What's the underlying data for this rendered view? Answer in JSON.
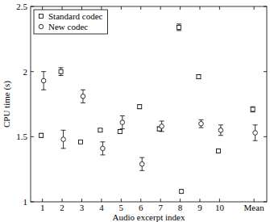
{
  "chart_data": {
    "type": "scatter",
    "x_label": "Audio excerpt index",
    "y_label": "CPU time (s)",
    "x": [
      1,
      2,
      3,
      4,
      5,
      6,
      7,
      8,
      9,
      10,
      11.75
    ],
    "xlim": [
      0.4,
      12.4
    ],
    "xticks": [
      1,
      2,
      3,
      4,
      5,
      6,
      7,
      8,
      9,
      10,
      {
        "value": 11.75,
        "label": "Mean"
      }
    ],
    "ylim": [
      1,
      2.5
    ],
    "yticks": [
      1,
      1.5,
      2,
      2.5
    ],
    "legend": "top-left",
    "series": [
      {
        "name": "Standard codec",
        "color": "#000000",
        "marker": "square",
        "values": [
          1.51,
          2.0,
          1.46,
          1.55,
          1.54,
          1.73,
          1.56,
          2.34,
          1.96,
          1.39,
          1.71
        ],
        "errors": [
          0.015,
          0.03,
          0.01,
          0.01,
          0.015,
          0.015,
          0.015,
          0.025,
          0.015,
          0.015,
          0.02
        ]
      },
      {
        "name": "New codec",
        "color": "#000000",
        "marker": "circle",
        "values": [
          1.93,
          1.48,
          1.81,
          1.41,
          1.61,
          1.29,
          1.58,
          1.08,
          1.6,
          1.55,
          1.53
        ],
        "errors": [
          0.07,
          0.07,
          0.05,
          0.05,
          0.05,
          0.05,
          0.04,
          0.015,
          0.03,
          0.04,
          0.06
        ]
      }
    ]
  }
}
